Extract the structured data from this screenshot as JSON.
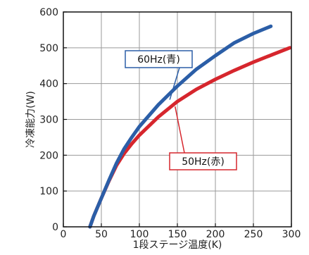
{
  "chart_data": {
    "type": "line",
    "title": "",
    "xlabel": "1段ステージ温度(K)",
    "ylabel": "冷凍能力(W)",
    "xlim": [
      0,
      300
    ],
    "ylim": [
      0,
      600
    ],
    "xticks": [
      0,
      50,
      100,
      150,
      200,
      250,
      300
    ],
    "yticks": [
      0,
      100,
      200,
      300,
      400,
      500,
      600
    ],
    "grid": true,
    "colors": {
      "series_60hz": "#2b5ea7",
      "series_50hz": "#d6262d",
      "grid": "#9a9a9a",
      "axis": "#111111"
    },
    "series": [
      {
        "name": "60Hz(青)",
        "color": "#2b5ea7",
        "x": [
          35,
          40,
          50,
          60,
          70,
          80,
          90,
          100,
          125,
          150,
          175,
          200,
          225,
          250,
          273
        ],
        "y": [
          0,
          30,
          80,
          130,
          178,
          218,
          250,
          280,
          341,
          393,
          440,
          478,
          514,
          540,
          560
        ]
      },
      {
        "name": "50Hz(赤)",
        "color": "#d6262d",
        "x": [
          35,
          40,
          50,
          60,
          70,
          80,
          90,
          100,
          125,
          150,
          175,
          200,
          225,
          250,
          275,
          298
        ],
        "y": [
          0,
          30,
          80,
          128,
          172,
          205,
          232,
          256,
          307,
          350,
          384,
          412,
          437,
          460,
          481,
          500
        ]
      }
    ],
    "annotations": [
      {
        "text": "60Hz(青)",
        "series": "60Hz(青)",
        "target": [
          140,
          355
        ]
      },
      {
        "text": "50Hz(赤)",
        "series": "50Hz(赤)",
        "target": [
          147,
          336
        ]
      }
    ]
  }
}
